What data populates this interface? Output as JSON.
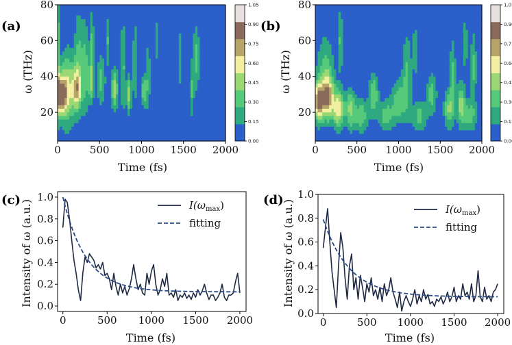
{
  "chart_data": [
    {
      "panel": "(a)",
      "type": "heatmap",
      "xlabel": "Time (fs)",
      "ylabel": "ω (THz)",
      "xlim": [
        0,
        2000
      ],
      "ylim": [
        4,
        80
      ],
      "xticks": [
        "0",
        "500",
        "1000",
        "1500",
        "2000"
      ],
      "xtick_values": [
        0,
        500,
        1000,
        1500,
        2000
      ],
      "yticks": [
        "20",
        "40",
        "60",
        "80"
      ],
      "ytick_values": [
        20,
        40,
        60,
        80
      ],
      "colorbar": {
        "ticks": [
          "0.00",
          "0.15",
          "0.30",
          "0.45",
          "0.60",
          "0.75",
          "0.90",
          "1.05"
        ],
        "levels": [
          0,
          0.15,
          0.3,
          0.45,
          0.6,
          0.75,
          0.9,
          1.05
        ],
        "colors": [
          "#2b5fc9",
          "#2fa97f",
          "#57c97a",
          "#9bd873",
          "#f2f0a0",
          "#b6a46b",
          "#8a6a5a",
          "#e8e0df"
        ]
      },
      "blobs": [
        {
          "t": 35,
          "f": 30,
          "wt": 45,
          "wf": 7,
          "a": 1.02
        },
        {
          "t": 0,
          "f": 55,
          "wt": 18,
          "wf": 25,
          "a": 0.42
        },
        {
          "t": 120,
          "f": 33,
          "wt": 60,
          "wf": 14,
          "a": 0.55
        },
        {
          "t": 230,
          "f": 33,
          "wt": 40,
          "wf": 8,
          "a": 0.62
        },
        {
          "t": 250,
          "f": 50,
          "wt": 35,
          "wf": 18,
          "a": 0.3
        },
        {
          "t": 330,
          "f": 45,
          "wt": 30,
          "wf": 18,
          "a": 0.32
        },
        {
          "t": 400,
          "f": 37,
          "wt": 25,
          "wf": 8,
          "a": 0.48
        },
        {
          "t": 410,
          "f": 60,
          "wt": 18,
          "wf": 12,
          "a": 0.3
        },
        {
          "t": 520,
          "f": 38,
          "wt": 35,
          "wf": 10,
          "a": 0.32
        },
        {
          "t": 600,
          "f": 60,
          "wt": 15,
          "wf": 10,
          "a": 0.28
        },
        {
          "t": 680,
          "f": 33,
          "wt": 28,
          "wf": 8,
          "a": 0.5
        },
        {
          "t": 780,
          "f": 45,
          "wt": 20,
          "wf": 18,
          "a": 0.32
        },
        {
          "t": 850,
          "f": 30,
          "wt": 20,
          "wf": 7,
          "a": 0.5
        },
        {
          "t": 920,
          "f": 48,
          "wt": 15,
          "wf": 18,
          "a": 0.3
        },
        {
          "t": 1030,
          "f": 32,
          "wt": 20,
          "wf": 6,
          "a": 0.48
        },
        {
          "t": 1080,
          "f": 40,
          "wt": 15,
          "wf": 14,
          "a": 0.3
        },
        {
          "t": 1450,
          "f": 50,
          "wt": 12,
          "wf": 12,
          "a": 0.3
        },
        {
          "t": 1650,
          "f": 50,
          "wt": 28,
          "wf": 12,
          "a": 0.34
        },
        {
          "t": 1600,
          "f": 32,
          "wt": 15,
          "wf": 10,
          "a": 0.3
        },
        {
          "t": 1180,
          "f": 60,
          "wt": 10,
          "wf": 8,
          "a": 0.25
        }
      ]
    },
    {
      "panel": "(b)",
      "type": "heatmap",
      "xlabel": "Time (fs)",
      "ylabel": "ω (THz)",
      "xlim": [
        0,
        2000
      ],
      "ylim": [
        4,
        80
      ],
      "xticks": [
        "0",
        "500",
        "1000",
        "1500",
        "2000"
      ],
      "xtick_values": [
        0,
        500,
        1000,
        1500,
        2000
      ],
      "yticks": [
        "20",
        "40",
        "60",
        "80"
      ],
      "ytick_values": [
        20,
        40,
        60,
        80
      ],
      "colorbar": {
        "ticks": [
          "0.00",
          "0.15",
          "0.30",
          "0.45",
          "0.60",
          "0.75",
          "0.90",
          "1.05"
        ],
        "levels": [
          0,
          0.15,
          0.3,
          0.45,
          0.6,
          0.75,
          0.9,
          1.05
        ],
        "colors": [
          "#2b5fc9",
          "#2fa97f",
          "#57c97a",
          "#9bd873",
          "#f2f0a0",
          "#b6a46b",
          "#8a6a5a",
          "#e8e0df"
        ]
      },
      "blobs": [
        {
          "t": 40,
          "f": 26,
          "wt": 40,
          "wf": 7,
          "a": 0.98
        },
        {
          "t": 150,
          "f": 28,
          "wt": 50,
          "wf": 8,
          "a": 0.8
        },
        {
          "t": 280,
          "f": 22,
          "wt": 45,
          "wf": 7,
          "a": 0.7
        },
        {
          "t": 120,
          "f": 42,
          "wt": 70,
          "wf": 14,
          "a": 0.32
        },
        {
          "t": 420,
          "f": 22,
          "wt": 40,
          "wf": 8,
          "a": 0.45
        },
        {
          "t": 550,
          "f": 18,
          "wt": 60,
          "wf": 6,
          "a": 0.4
        },
        {
          "t": 700,
          "f": 30,
          "wt": 40,
          "wf": 8,
          "a": 0.42
        },
        {
          "t": 850,
          "f": 18,
          "wt": 60,
          "wf": 6,
          "a": 0.36
        },
        {
          "t": 1000,
          "f": 26,
          "wt": 60,
          "wf": 8,
          "a": 0.38
        },
        {
          "t": 1100,
          "f": 40,
          "wt": 40,
          "wf": 16,
          "a": 0.3
        },
        {
          "t": 1250,
          "f": 18,
          "wt": 60,
          "wf": 6,
          "a": 0.34
        },
        {
          "t": 1400,
          "f": 30,
          "wt": 40,
          "wf": 8,
          "a": 0.36
        },
        {
          "t": 1600,
          "f": 22,
          "wt": 40,
          "wf": 7,
          "a": 0.42
        },
        {
          "t": 1650,
          "f": 40,
          "wt": 25,
          "wf": 14,
          "a": 0.32
        },
        {
          "t": 1750,
          "f": 25,
          "wt": 35,
          "wf": 8,
          "a": 0.46
        },
        {
          "t": 1850,
          "f": 18,
          "wt": 60,
          "wf": 6,
          "a": 0.34
        },
        {
          "t": 1900,
          "f": 45,
          "wt": 25,
          "wf": 14,
          "a": 0.3
        },
        {
          "t": 300,
          "f": 60,
          "wt": 25,
          "wf": 12,
          "a": 0.28
        },
        {
          "t": 1200,
          "f": 55,
          "wt": 20,
          "wf": 10,
          "a": 0.26
        },
        {
          "t": 1800,
          "f": 58,
          "wt": 20,
          "wf": 10,
          "a": 0.26
        }
      ]
    },
    {
      "panel": "(c)",
      "type": "line",
      "xlabel": "Time (fs)",
      "ylabel": "Intensity of ω (a.u.)",
      "xlim": [
        -60,
        2070
      ],
      "ylim": [
        -0.05,
        1.05
      ],
      "xticks": [
        "0",
        "500",
        "1000",
        "1500",
        "2000"
      ],
      "xtick_values": [
        0,
        500,
        1000,
        1500,
        2000
      ],
      "yticks": [
        "0.0",
        "0.2",
        "0.4",
        "0.6",
        "0.8",
        "1.0"
      ],
      "ytick_values": [
        0,
        0.2,
        0.4,
        0.6,
        0.8,
        1.0
      ],
      "legend": {
        "position": "top-right",
        "entries": [
          "I(ω_max)",
          "fitting"
        ],
        "entry1_main": "I(ω",
        "entry1_sub": "max",
        "entry1_close": ")"
      },
      "series": [
        {
          "name": "I(ω_max)",
          "style": "solid",
          "x": [
            0,
            25,
            50,
            75,
            100,
            125,
            150,
            175,
            200,
            225,
            250,
            275,
            300,
            325,
            350,
            375,
            400,
            425,
            450,
            475,
            500,
            525,
            550,
            575,
            600,
            625,
            650,
            675,
            700,
            725,
            750,
            775,
            800,
            825,
            850,
            875,
            900,
            925,
            950,
            975,
            1000,
            1025,
            1050,
            1075,
            1100,
            1125,
            1150,
            1175,
            1200,
            1225,
            1250,
            1275,
            1300,
            1325,
            1350,
            1375,
            1400,
            1425,
            1450,
            1475,
            1500,
            1525,
            1550,
            1575,
            1600,
            1625,
            1650,
            1675,
            1700,
            1725,
            1750,
            1775,
            1800,
            1825,
            1850,
            1875,
            1900,
            1925,
            1950,
            1975,
            2000
          ],
          "values": [
            0.72,
            0.98,
            0.95,
            0.8,
            0.6,
            0.42,
            0.3,
            0.15,
            0.05,
            0.3,
            0.45,
            0.4,
            0.48,
            0.45,
            0.42,
            0.35,
            0.38,
            0.34,
            0.4,
            0.28,
            0.3,
            0.25,
            0.15,
            0.3,
            0.18,
            0.1,
            0.2,
            0.12,
            0.18,
            0.1,
            0.16,
            0.25,
            0.38,
            0.25,
            0.15,
            0.2,
            0.12,
            0.1,
            0.3,
            0.2,
            0.32,
            0.38,
            0.2,
            0.1,
            0.15,
            0.25,
            0.18,
            0.3,
            0.1,
            0.12,
            0.08,
            0.15,
            0.05,
            0.1,
            0.08,
            0.12,
            0.07,
            0.1,
            0.06,
            0.12,
            0.08,
            0.15,
            0.1,
            0.14,
            0.2,
            0.12,
            0.06,
            0.1,
            0.1,
            0.05,
            0.08,
            0.12,
            0.2,
            0.08,
            0.05,
            0.1,
            0.1,
            0.12,
            0.22,
            0.3,
            0.12
          ]
        },
        {
          "name": "fitting",
          "style": "dashed",
          "model": {
            "A": 0.87,
            "tau": 260,
            "c": 0.13
          }
        }
      ]
    },
    {
      "panel": "(d)",
      "type": "line",
      "xlabel": "Time (fs)",
      "ylabel": "Intensity of ω (a.u.)",
      "xlim": [
        -60,
        2070
      ],
      "ylim": [
        0.0,
        1.0
      ],
      "xticks": [
        "0",
        "500",
        "1000",
        "1500",
        "2000"
      ],
      "xtick_values": [
        0,
        500,
        1000,
        1500,
        2000
      ],
      "yticks": [
        "0.0",
        "0.2",
        "0.4",
        "0.6",
        "0.8",
        "1.0"
      ],
      "ytick_values": [
        0,
        0.2,
        0.4,
        0.6,
        0.8,
        1.0
      ],
      "legend": {
        "position": "top-right",
        "entries": [
          "I(ω_max)",
          "fitting"
        ],
        "entry1_main": "I(ω",
        "entry1_sub": "max",
        "entry1_close": ")"
      },
      "series": [
        {
          "name": "I(ω_max)",
          "style": "solid",
          "x": [
            0,
            25,
            50,
            75,
            100,
            125,
            150,
            175,
            200,
            225,
            250,
            275,
            300,
            325,
            350,
            375,
            400,
            425,
            450,
            475,
            500,
            525,
            550,
            575,
            600,
            625,
            650,
            675,
            700,
            725,
            750,
            775,
            800,
            825,
            850,
            875,
            900,
            925,
            950,
            975,
            1000,
            1025,
            1050,
            1075,
            1100,
            1125,
            1150,
            1175,
            1200,
            1225,
            1250,
            1275,
            1300,
            1325,
            1350,
            1375,
            1400,
            1425,
            1450,
            1475,
            1500,
            1525,
            1550,
            1575,
            1600,
            1625,
            1650,
            1675,
            1700,
            1725,
            1750,
            1775,
            1800,
            1825,
            1850,
            1875,
            1900,
            1925,
            1950,
            1975,
            2000
          ],
          "values": [
            0.55,
            0.72,
            0.88,
            0.6,
            0.35,
            0.2,
            0.05,
            0.4,
            0.68,
            0.55,
            0.3,
            0.12,
            0.4,
            0.5,
            0.2,
            0.3,
            0.12,
            0.32,
            0.22,
            0.1,
            0.25,
            0.18,
            0.3,
            0.15,
            0.2,
            0.12,
            0.22,
            0.1,
            0.25,
            0.15,
            0.2,
            0.3,
            0.18,
            0.12,
            0.05,
            0.18,
            0.02,
            0.1,
            0.15,
            0.1,
            0.06,
            0.12,
            0.2,
            0.08,
            0.15,
            0.1,
            0.2,
            0.12,
            0.16,
            0.08,
            0.1,
            0.06,
            0.12,
            0.1,
            0.14,
            0.08,
            0.12,
            0.18,
            0.1,
            0.14,
            0.22,
            0.1,
            0.15,
            0.12,
            0.25,
            0.15,
            0.18,
            0.12,
            0.25,
            0.1,
            0.15,
            0.36,
            0.14,
            0.1,
            0.22,
            0.12,
            0.15,
            0.1,
            0.18,
            0.2,
            0.25
          ]
        },
        {
          "name": "fitting",
          "style": "dashed",
          "model": {
            "A": 0.65,
            "tau": 300,
            "c": 0.14
          }
        }
      ]
    }
  ],
  "panel_labels": [
    "(a)",
    "(b)",
    "(c)",
    "(d)"
  ],
  "line_color": "#1f2a44",
  "fit_color": "#2a4b87"
}
